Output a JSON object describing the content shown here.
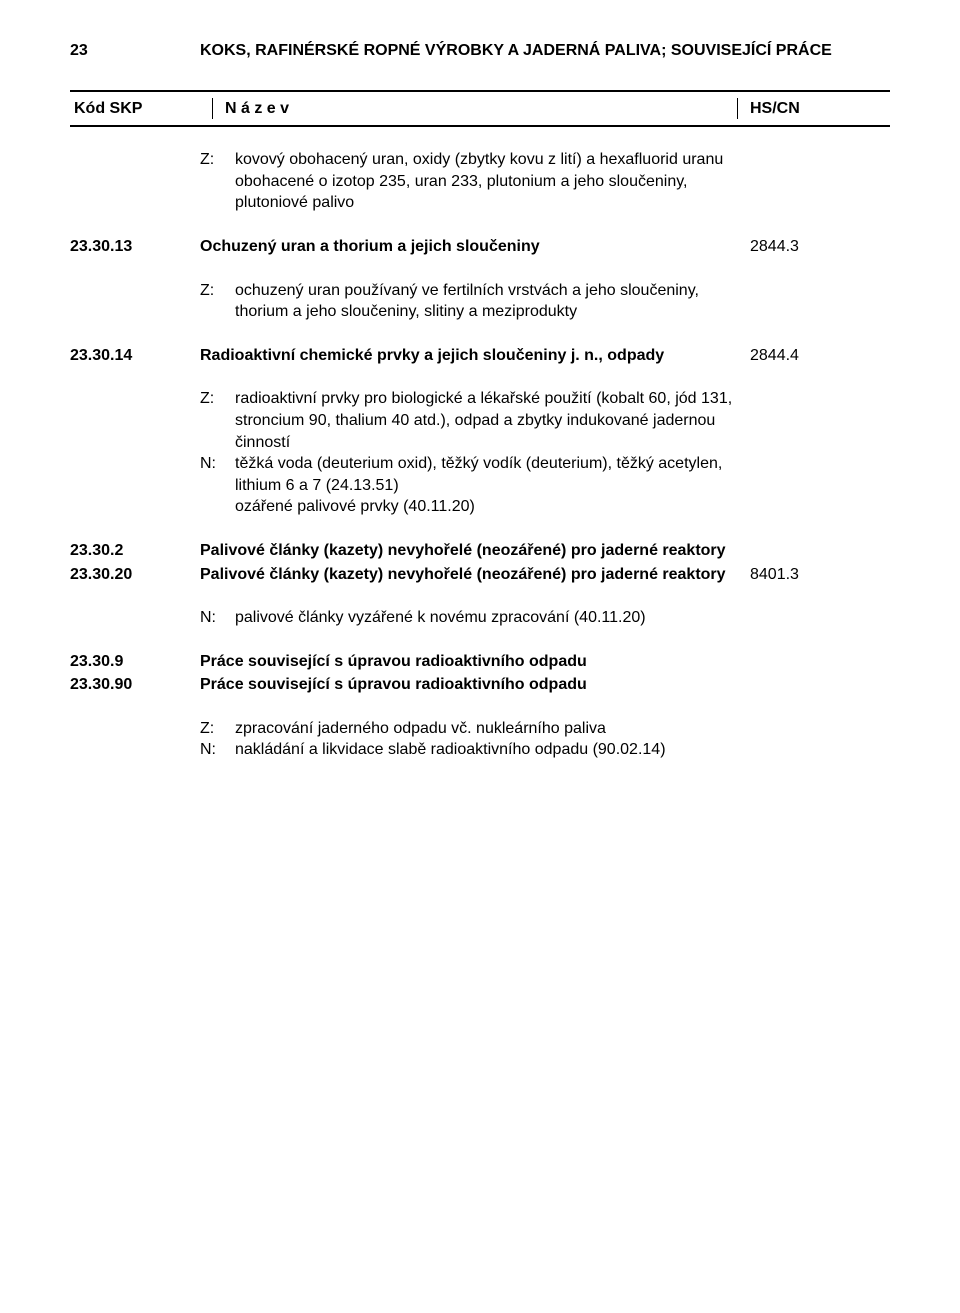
{
  "header": {
    "number": "23",
    "title": "KOKS, RAFINÉRSKÉ ROPNÉ VÝROBKY A JADERNÁ PALIVA; SOUVISEJÍCÍ PRÁCE"
  },
  "table_head": {
    "col1": "Kód SKP",
    "col2": "N á z e v",
    "col3": "HS/CN"
  },
  "zn_block_1": {
    "z_prefix": "Z:",
    "z_text": "kovový obohacený uran, oxidy (zbytky kovu z lití) a hexafluorid uranu obohacené o izotop 235, uran 233, plutonium a jeho sloučeniny, plutoniové palivo"
  },
  "row_23_30_13": {
    "code": "23.30.13",
    "name": "Ochuzený uran a thorium a jejich sloučeniny",
    "hs": "2844.3"
  },
  "zn_block_2": {
    "z_prefix": "Z:",
    "z_text": "ochuzený uran používaný ve fertilních vrstvách a jeho sloučeniny, thorium a jeho sloučeniny, slitiny a meziprodukty"
  },
  "row_23_30_14": {
    "code": "23.30.14",
    "name": "Radioaktivní chemické prvky a jejich sloučeniny j. n., odpady",
    "hs": "2844.4"
  },
  "zn_block_3": {
    "z_prefix": "Z:",
    "z_text": "radioaktivní prvky pro biologické a lékařské použití (kobalt 60, jód 131, stroncium 90, thalium 40 atd.), odpad a zbytky indukované jadernou činností",
    "n_prefix": "N:",
    "n_text": "těžká voda (deuterium oxid), těžký vodík (deuterium), těžký acetylen, lithium 6 a 7 (24.13.51)",
    "extra": "ozářené palivové prvky (40.11.20)"
  },
  "row_23_30_2": {
    "code": "23.30.2",
    "name": "Palivové články (kazety) nevyhořelé (neozářené) pro jaderné reaktory",
    "hs": ""
  },
  "row_23_30_20": {
    "code": "23.30.20",
    "name": "Palivové články (kazety) nevyhořelé (neozářené) pro jaderné reaktory",
    "hs": "8401.3"
  },
  "zn_block_4": {
    "n_prefix": "N:",
    "n_text": "palivové články vyzářené k novému zpracování (40.11.20)"
  },
  "row_23_30_9": {
    "code": "23.30.9",
    "name": "Práce související s úpravou radioaktivního odpadu",
    "hs": ""
  },
  "row_23_30_90": {
    "code": "23.30.90",
    "name": "Práce související s úpravou radioaktivního odpadu",
    "hs": ""
  },
  "zn_block_5": {
    "z_prefix": "Z:",
    "z_text": "zpracování jaderného odpadu vč. nukleárního paliva",
    "n_prefix": "N:",
    "n_text": "nakládání a likvidace slabě radioaktivního odpadu (90.02.14)"
  }
}
